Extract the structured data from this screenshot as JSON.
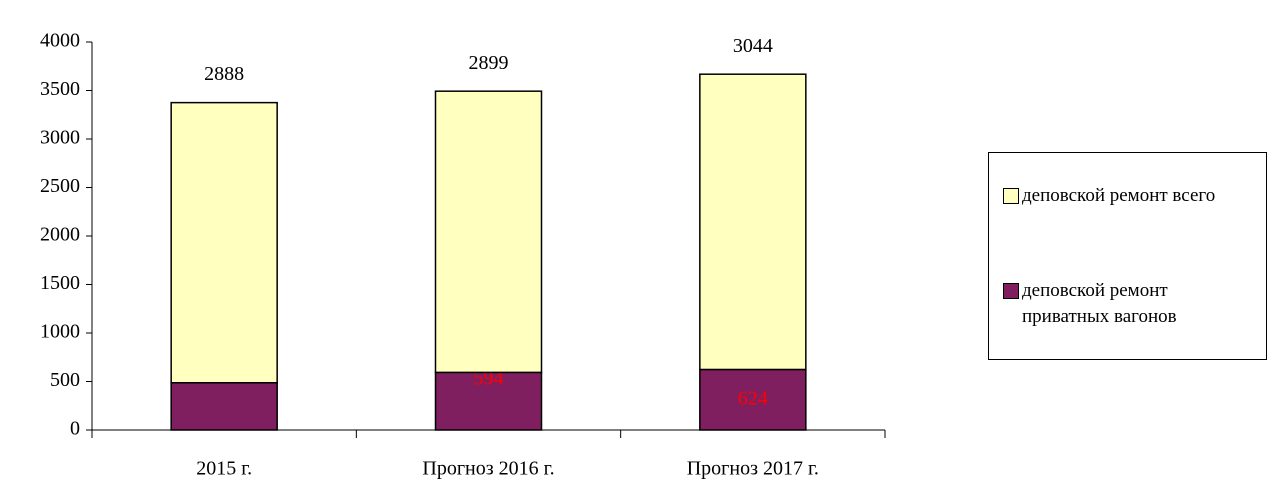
{
  "chart_data": {
    "type": "stacked_bar",
    "categories": [
      "2015 г.",
      "Прогноз 2016 г.",
      "Прогноз 2017 г."
    ],
    "series": [
      {
        "name": "деповской ремонт приватных вагонов",
        "color": "#7f1f5f",
        "label_color": "#ff0000",
        "values": [
          487,
          594,
          624
        ]
      },
      {
        "name": "деповской ремонт всего",
        "color": "#ffffc0",
        "label_color": "#000000",
        "values": [
          2888,
          2899,
          3044
        ]
      }
    ],
    "ylim": [
      0,
      4000
    ],
    "yticks": [
      0,
      500,
      1000,
      1500,
      2000,
      2500,
      3000,
      3500,
      4000
    ],
    "legend": "right"
  }
}
